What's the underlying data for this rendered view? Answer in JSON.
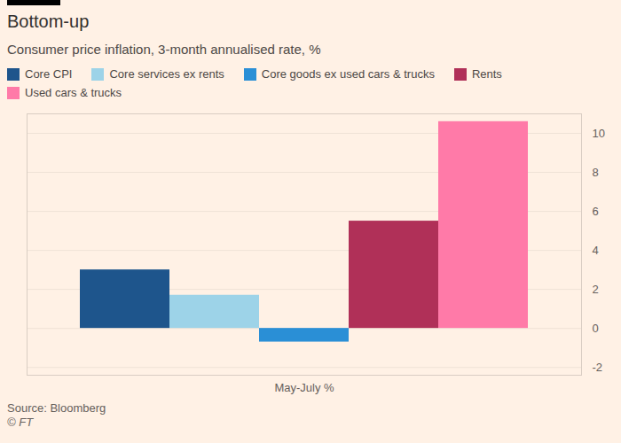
{
  "chart_data": {
    "type": "bar",
    "title": "Bottom-up",
    "subtitle": "Consumer price inflation, 3-month annualised rate, %",
    "source": "Source: Bloomberg",
    "credit": "© FT",
    "categories": [
      "May-July %"
    ],
    "series": [
      {
        "name": "Core CPI",
        "color": "#1e558c",
        "values": [
          3.0
        ]
      },
      {
        "name": "Core services ex rents",
        "color": "#9dd3e8",
        "values": [
          1.7
        ]
      },
      {
        "name": "Core goods ex used cars & trucks",
        "color": "#2a8fd6",
        "values": [
          -0.7
        ]
      },
      {
        "name": "Rents",
        "color": "#b03058",
        "values": [
          5.5
        ]
      },
      {
        "name": "Used cars & trucks",
        "color": "#ff7aa8",
        "values": [
          10.6
        ]
      }
    ],
    "ylim": [
      -2.4,
      11
    ],
    "yticks": [
      -2,
      0,
      2,
      4,
      6,
      8,
      10
    ],
    "grid": true
  }
}
